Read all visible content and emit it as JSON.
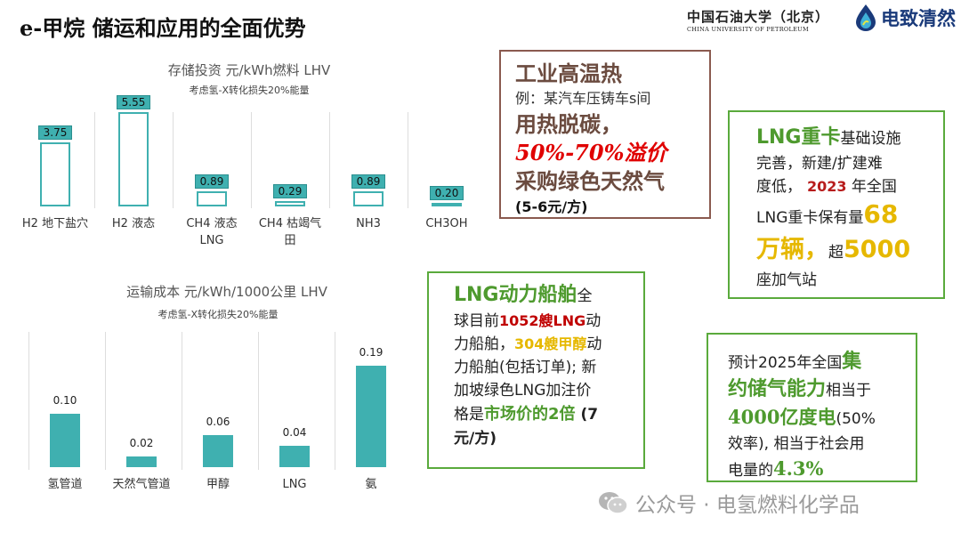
{
  "header": {
    "title": "e-甲烷  储运和应用的全面优势",
    "univ_zh": "中国石油大学（北京）",
    "univ_en": "CHINA UNIVERSITY OF PETROLEUM",
    "brand": "电致清然"
  },
  "colors": {
    "bar": "#3fb0b0",
    "bar_outline": "#3fb0b0",
    "green": "#4e9a2e",
    "brown": "#8a5a4f",
    "red": "#e00000",
    "gold": "#e6b800"
  },
  "chart_data": [
    {
      "type": "bar",
      "style": "outline",
      "title": "存储投资 元/kWh燃料 LHV",
      "subtitle": "考虑氢-X转化损失20%能量",
      "categories": [
        "H2 地下盐穴",
        "H2 液态",
        "CH4 液态LNG",
        "CH4 枯竭气田",
        "NH3",
        "CH3OH"
      ],
      "category_lines": [
        [
          "H2 地下盐穴"
        ],
        [
          "H2 液态"
        ],
        [
          "CH4 液态",
          "LNG"
        ],
        [
          "CH4 枯竭气",
          "田"
        ],
        [
          "NH3"
        ],
        [
          "CH3OH"
        ]
      ],
      "values": [
        3.75,
        5.55,
        0.89,
        0.29,
        0.89,
        0.2
      ],
      "labels": [
        "3.75",
        "5.55",
        "0.89",
        "0.29",
        "0.89",
        "0.20"
      ],
      "ylim": [
        0,
        6
      ]
    },
    {
      "type": "bar",
      "style": "solid",
      "title": "运输成本 元/kWh/1000公里 LHV",
      "subtitle": "考虑氢-X转化损失20%能量",
      "categories": [
        "氢管道",
        "天然气管道",
        "甲醇",
        "LNG",
        "氨"
      ],
      "values": [
        0.1,
        0.02,
        0.06,
        0.04,
        0.19
      ],
      "labels": [
        "0.10",
        "0.02",
        "0.06",
        "0.04",
        "0.19"
      ],
      "ylim": [
        0,
        0.2
      ]
    }
  ],
  "box1": {
    "l1": "工业高温热",
    "l2": "例：某汽车压铸车s间",
    "l3": "用热脱碳，",
    "l4": "50%-70%溢价",
    "l5": "采购绿色天然气",
    "l6": "(5-6元/方)"
  },
  "box2": {
    "l1a": "LNG重卡",
    "l1b": "基础设施",
    "l2": "完善，新建/扩建难",
    "l3a": "度低，",
    "l3b": "2023",
    "l3c": " 年全国",
    "l4a": "LNG重卡保有量",
    "l4b": "68",
    "l5a": "万辆，",
    "l5b": "超",
    "l5c": "5000",
    "l6": "座加气站"
  },
  "box3": {
    "l1a": "LNG动力船舶",
    "l1b": "全",
    "l2a": "球目前",
    "l2b": "1052艘LNG",
    "l2c": "动",
    "l3a": "力船舶，",
    "l3b": "304艘甲醇",
    "l3c": "动",
    "l4": "力船舶(包括订单); 新",
    "l5": "加坡绿色LNG加注价",
    "l6a": "格是",
    "l6b": "市场价的2倍",
    "l6c": " (7",
    "l7": "元/方)"
  },
  "box4": {
    "l1a": "预计2025年全国",
    "l1b": "集",
    "l2a": "约储气能力",
    "l2b": "相当于",
    "l3a": "4000亿度电",
    "l3b": "(50%",
    "l4": "效率), 相当于社会用",
    "l5a": "电量的",
    "l5b": "4.3%"
  },
  "watermark": {
    "text": "公众号 · 电氢燃料化学品"
  }
}
